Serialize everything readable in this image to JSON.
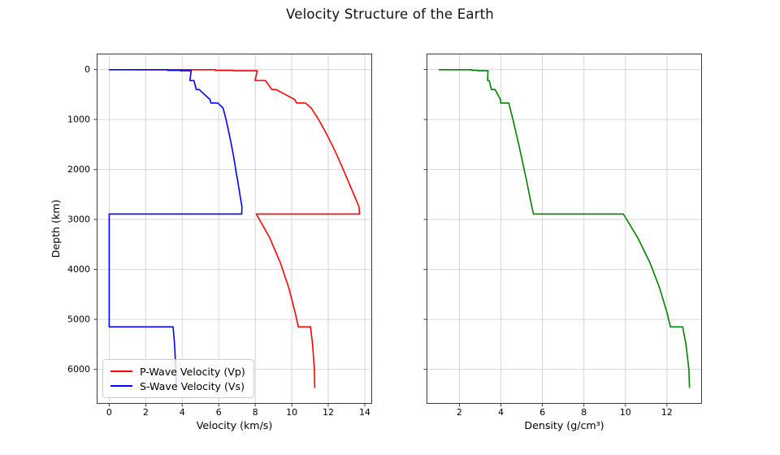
{
  "title": "Velocity Structure of the Earth",
  "colors": {
    "vp": "#ff0000",
    "vs": "#0000ff",
    "density": "#008000",
    "grid": "#d6d6d6",
    "spine": "#3c3c3c",
    "text": "#000000"
  },
  "chart_data": [
    {
      "type": "line",
      "title": "",
      "xlabel": "Velocity (km/s)",
      "ylabel": "Depth (km)",
      "xlim": [
        -0.686,
        14.403
      ],
      "ylim": [
        -318.6,
        6689.6
      ],
      "y_inverted": true,
      "grid": true,
      "xticks": [
        0,
        2,
        4,
        6,
        8,
        10,
        12,
        14
      ],
      "yticks": [
        0,
        1000,
        2000,
        3000,
        4000,
        5000,
        6000
      ],
      "ytick_labels": true,
      "legend": {
        "position": "lower left"
      },
      "depth": [
        0,
        3,
        3,
        15,
        15,
        24.4,
        24.4,
        80,
        220,
        220,
        400,
        400,
        500,
        600,
        670,
        670,
        771,
        1000,
        1250,
        1500,
        1750,
        2000,
        2250,
        2500,
        2741,
        2891,
        2891,
        3371,
        3871,
        4371,
        4871,
        5149.5,
        5149.5,
        5500,
        6000,
        6371
      ],
      "series": [
        {
          "name": "P-Wave Velocity (Vp)",
          "color": "#ff0000",
          "values": [
            1.45,
            1.45,
            5.8,
            5.8,
            6.8,
            6.8,
            8.11,
            8.08,
            7.99,
            8.56,
            8.91,
            9.13,
            9.65,
            10.16,
            10.27,
            10.75,
            11.07,
            11.47,
            11.85,
            12.2,
            12.52,
            12.82,
            13.11,
            13.4,
            13.68,
            13.72,
            8.06,
            8.8,
            9.38,
            9.84,
            10.19,
            10.36,
            11.03,
            11.14,
            11.24,
            11.26
          ]
        },
        {
          "name": "S-Wave Velocity (Vs)",
          "color": "#0000ff",
          "values": [
            0,
            0,
            3.2,
            3.2,
            3.9,
            3.9,
            4.49,
            4.47,
            4.42,
            4.64,
            4.77,
            4.93,
            5.22,
            5.52,
            5.57,
            5.95,
            6.24,
            6.4,
            6.55,
            6.69,
            6.82,
            6.93,
            7.05,
            7.16,
            7.27,
            7.26,
            0,
            0,
            0,
            0,
            0,
            0,
            3.5,
            3.58,
            3.65,
            3.67
          ]
        }
      ]
    },
    {
      "type": "line",
      "title": "",
      "xlabel": "Density (g/cm³)",
      "ylabel": "",
      "xlim": [
        0.417,
        13.692
      ],
      "ylim": [
        -318.6,
        6689.6
      ],
      "y_inverted": true,
      "grid": true,
      "xticks": [
        2,
        4,
        6,
        8,
        10,
        12
      ],
      "yticks": [
        0,
        1000,
        2000,
        3000,
        4000,
        5000,
        6000
      ],
      "ytick_labels": false,
      "depth": [
        0,
        3,
        3,
        15,
        15,
        24.4,
        24.4,
        80,
        220,
        220,
        400,
        400,
        500,
        600,
        670,
        670,
        771,
        1000,
        1250,
        1500,
        1750,
        2000,
        2250,
        2500,
        2741,
        2891,
        2891,
        3371,
        3871,
        4371,
        4871,
        5149.5,
        5149.5,
        5500,
        6000,
        6371
      ],
      "series": [
        {
          "name": "Density",
          "color": "#008000",
          "values": [
            1.02,
            1.02,
            2.6,
            2.6,
            2.9,
            2.9,
            3.38,
            3.37,
            3.36,
            3.44,
            3.54,
            3.72,
            3.85,
            3.98,
            3.99,
            4.38,
            4.44,
            4.58,
            4.72,
            4.86,
            4.99,
            5.12,
            5.25,
            5.37,
            5.49,
            5.57,
            9.9,
            10.6,
            11.19,
            11.65,
            12.01,
            12.17,
            12.76,
            12.92,
            13.06,
            13.09
          ]
        }
      ]
    }
  ]
}
